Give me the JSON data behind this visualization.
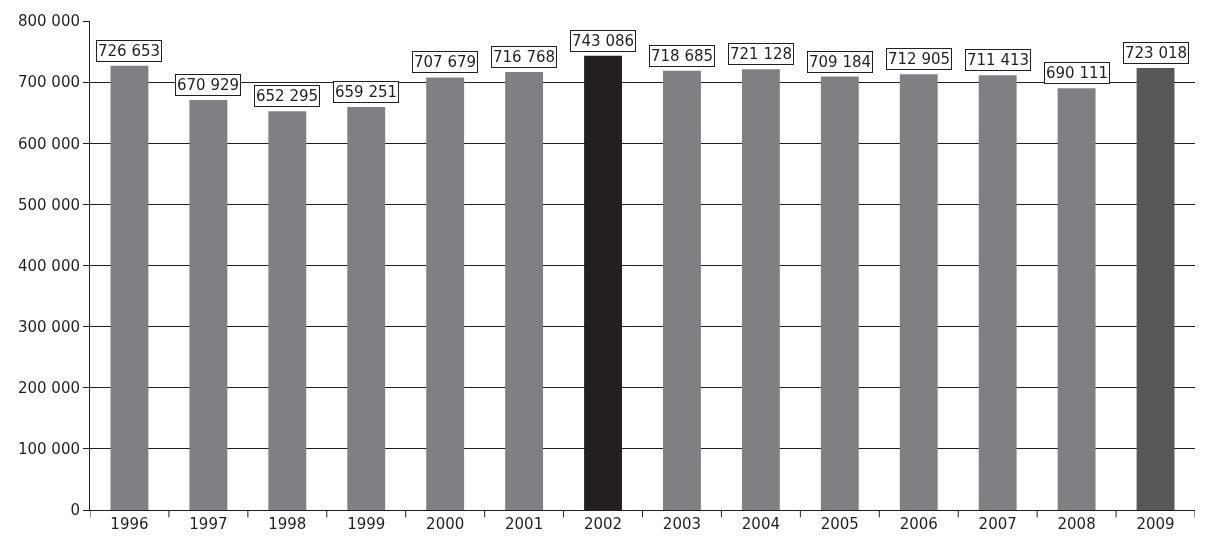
{
  "chart_data": {
    "type": "bar",
    "categories": [
      "1996",
      "1997",
      "1998",
      "1999",
      "2000",
      "2001",
      "2002",
      "2003",
      "2004",
      "2005",
      "2006",
      "2007",
      "2008",
      "2009"
    ],
    "values": [
      726653,
      670929,
      652295,
      659251,
      707679,
      716768,
      743086,
      718685,
      721128,
      709184,
      712905,
      711413,
      690111,
      723018
    ],
    "colors": [
      "#808084",
      "#808084",
      "#808084",
      "#808084",
      "#808084",
      "#808084",
      "#231f20",
      "#808084",
      "#808084",
      "#808084",
      "#808084",
      "#808084",
      "#808084",
      "#58585a"
    ],
    "ylim": [
      0,
      800000
    ],
    "yticks": [
      {
        "value": 0,
        "label": "0"
      },
      {
        "value": 100000,
        "label": "100 000"
      },
      {
        "value": 200000,
        "label": "200 000"
      },
      {
        "value": 300000,
        "label": "300 000"
      },
      {
        "value": 400000,
        "label": "400 000"
      },
      {
        "value": 500000,
        "label": "500 000"
      },
      {
        "value": 600000,
        "label": "600 000"
      },
      {
        "value": 700000,
        "label": "700 000"
      },
      {
        "value": 800000,
        "label": "800 000"
      }
    ],
    "grid": "y",
    "data_labels": true
  }
}
